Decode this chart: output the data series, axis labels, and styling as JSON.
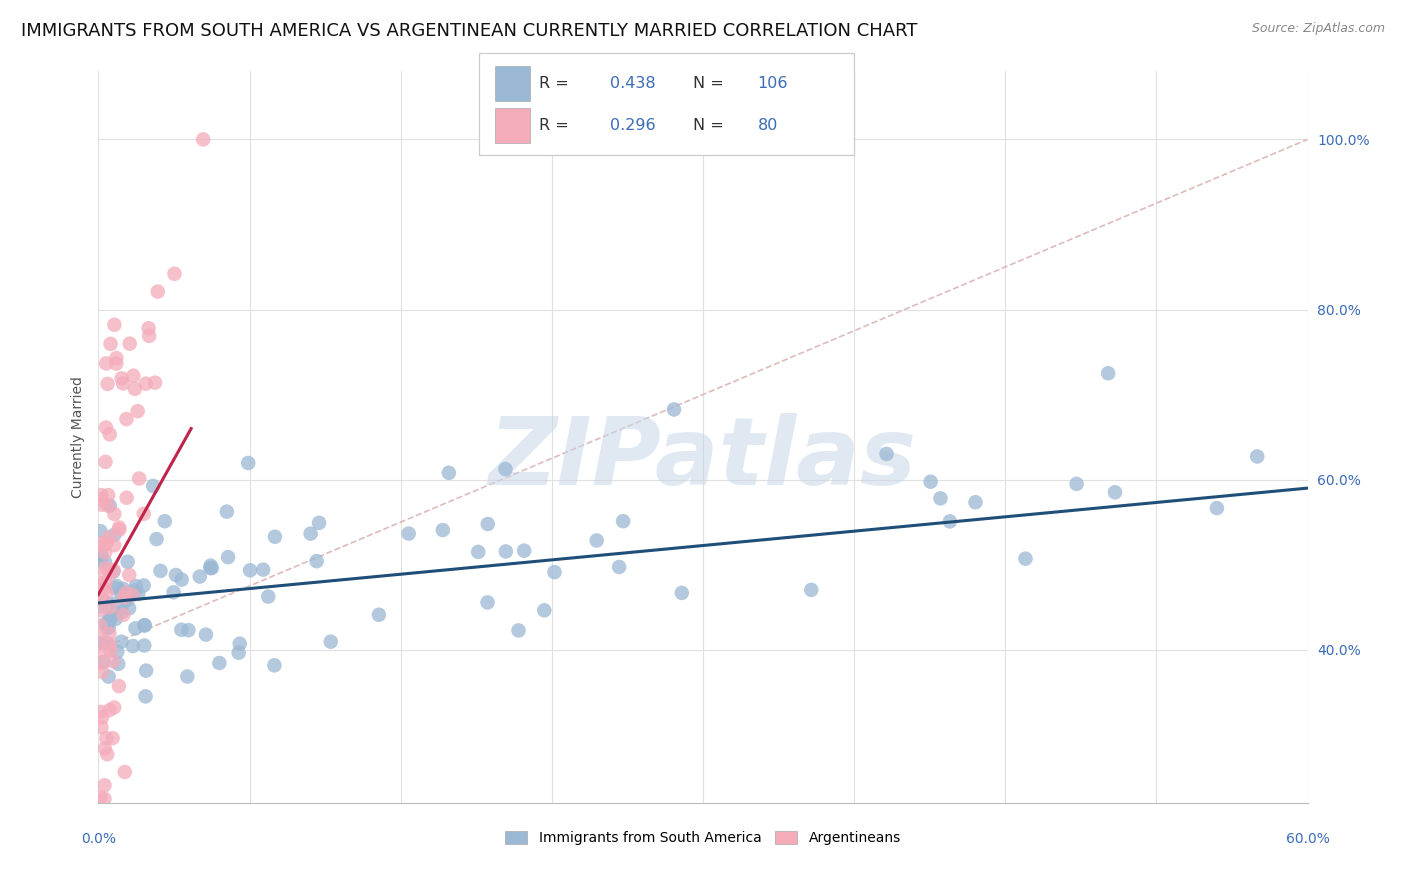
{
  "title": "IMMIGRANTS FROM SOUTH AMERICA VS ARGENTINEAN CURRENTLY MARRIED CORRELATION CHART",
  "source": "Source: ZipAtlas.com",
  "ylabel": "Currently Married",
  "ylabel_right_values": [
    0.4,
    0.6,
    0.8,
    1.0
  ],
  "xmin": 0.0,
  "xmax": 0.6,
  "ymin": 0.22,
  "ymax": 1.08,
  "blue_R": "0.438",
  "blue_N": "106",
  "pink_R": "0.296",
  "pink_N": "80",
  "blue_color": "#9BB8D4",
  "pink_color": "#F4ABBA",
  "blue_line_color": "#1F4E79",
  "pink_line_color": "#C0244A",
  "diag_line_color": "#DDBBBB",
  "grid_color": "#E0E0E0",
  "bg_color": "#FFFFFF",
  "right_axis_color": "#3B6CB7",
  "title_fontsize": 13,
  "axis_label_fontsize": 10,
  "tick_fontsize": 10,
  "watermark_text": "ZIPatlas",
  "legend_box_text_color": "#333333",
  "legend_blue_val_color": "#3B6CB7",
  "legend_pink_val_color": "#3B6CB7",
  "blue_line_x": [
    0.0,
    0.6
  ],
  "blue_line_y": [
    0.455,
    0.59
  ],
  "pink_line_x": [
    0.0,
    0.046
  ],
  "pink_line_y": [
    0.465,
    0.66
  ],
  "diag_line_x": [
    0.0,
    0.6
  ],
  "diag_line_y": [
    0.4,
    1.0
  ]
}
